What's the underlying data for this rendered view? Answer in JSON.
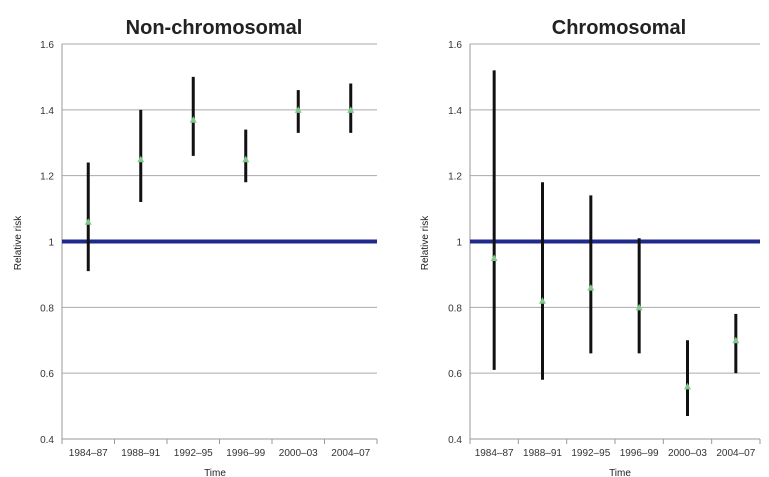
{
  "chart_data": [
    {
      "type": "scatter",
      "title": "Non-chromosomal",
      "xlabel": "Time",
      "ylabel": "Relative risk",
      "categories": [
        "1984–87",
        "1988–91",
        "1992–95",
        "1996–99",
        "2000–03",
        "2004–07"
      ],
      "ylim": [
        0.4,
        1.6
      ],
      "yticks": [
        "0.4",
        "0.6",
        "0.8",
        "1",
        "1.2",
        "1.4",
        "1.6"
      ],
      "reference_line": 1.0,
      "grid": true,
      "legend": "none",
      "series": [
        {
          "estimate": [
            1.06,
            1.25,
            1.37,
            1.25,
            1.4,
            1.4
          ],
          "lower": [
            0.91,
            1.12,
            1.26,
            1.18,
            1.33,
            1.33
          ],
          "upper": [
            1.24,
            1.4,
            1.5,
            1.34,
            1.46,
            1.48
          ]
        }
      ]
    },
    {
      "type": "scatter",
      "title": "Chromosomal",
      "xlabel": "Time",
      "ylabel": "Relative risk",
      "categories": [
        "1984–87",
        "1988–91",
        "1992–95",
        "1996–99",
        "2000–03",
        "2004–07"
      ],
      "ylim": [
        0.4,
        1.6
      ],
      "yticks": [
        "0.4",
        "0.6",
        "0.8",
        "1",
        "1.2",
        "1.4",
        "1.6"
      ],
      "reference_line": 1.0,
      "grid": true,
      "legend": "none",
      "series": [
        {
          "estimate": [
            0.95,
            0.82,
            0.86,
            0.8,
            0.56,
            0.7
          ],
          "lower": [
            0.61,
            0.58,
            0.66,
            0.66,
            0.47,
            0.6
          ],
          "upper": [
            1.52,
            1.18,
            1.14,
            1.01,
            0.7,
            0.78
          ]
        }
      ]
    }
  ],
  "colors": {
    "reference_line": "#1f2a8c",
    "error_bar": "#111111",
    "marker": "#7fc98a",
    "grid": "#aaaaaa",
    "axis": "#999999"
  }
}
